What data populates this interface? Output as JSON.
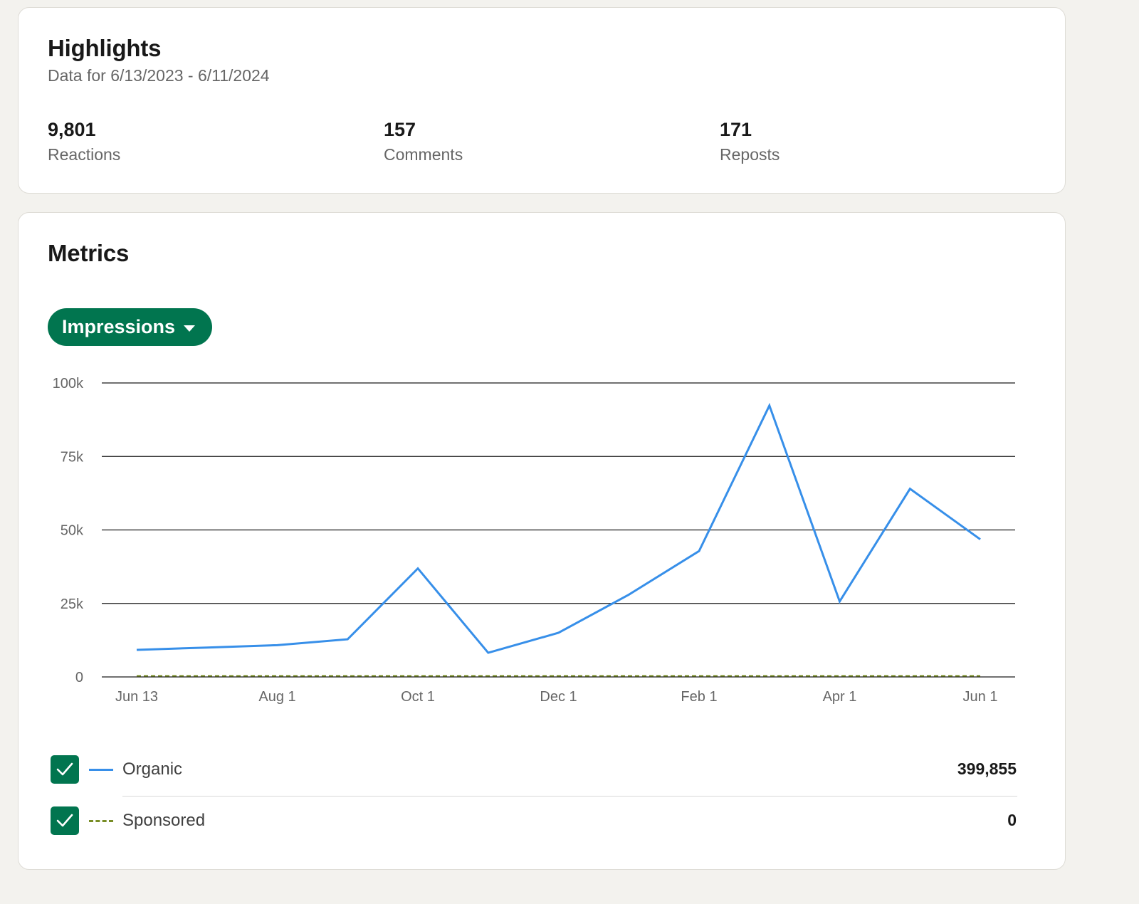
{
  "highlights": {
    "title": "Highlights",
    "subtitle": "Data for 6/13/2023 - 6/11/2024",
    "stats": [
      {
        "value": "9,801",
        "label": "Reactions"
      },
      {
        "value": "157",
        "label": "Comments"
      },
      {
        "value": "171",
        "label": "Reposts"
      }
    ]
  },
  "metrics": {
    "title": "Metrics",
    "selector_label": "Impressions",
    "selector_icon": "caret-down-icon",
    "legend": [
      {
        "label": "Organic",
        "total": "399,855",
        "checked": true,
        "color": "#378fe9",
        "line": "solid"
      },
      {
        "label": "Sponsored",
        "total": "0",
        "checked": true,
        "color": "#788d26",
        "line": "dashed"
      }
    ]
  },
  "chart_data": {
    "type": "line",
    "x_ticks": [
      "Jun 13",
      "Aug 1",
      "Oct 1",
      "Dec 1",
      "Feb 1",
      "Apr 1",
      "Jun 1"
    ],
    "y_ticks": [
      "0",
      "25k",
      "50k",
      "75k",
      "100k"
    ],
    "ylim": [
      0,
      100000
    ],
    "grid": true,
    "x": [
      "2023-06-13",
      "2023-07-13",
      "2023-08-12",
      "2023-09-11",
      "2023-10-11",
      "2023-11-10",
      "2023-12-10",
      "2024-01-09",
      "2024-02-08",
      "2024-03-09",
      "2024-04-08",
      "2024-05-08",
      "2024-06-07"
    ],
    "series": [
      {
        "name": "Organic",
        "color": "#378fe9",
        "dashed": false,
        "values": [
          9200,
          10000,
          10800,
          12800,
          36900,
          8200,
          15000,
          28000,
          42800,
          92300,
          25700,
          64000,
          46800
        ]
      },
      {
        "name": "Sponsored",
        "color": "#788d26",
        "dashed": true,
        "values": [
          0,
          0,
          0,
          0,
          0,
          0,
          0,
          0,
          0,
          0,
          0,
          0,
          0
        ]
      }
    ]
  }
}
